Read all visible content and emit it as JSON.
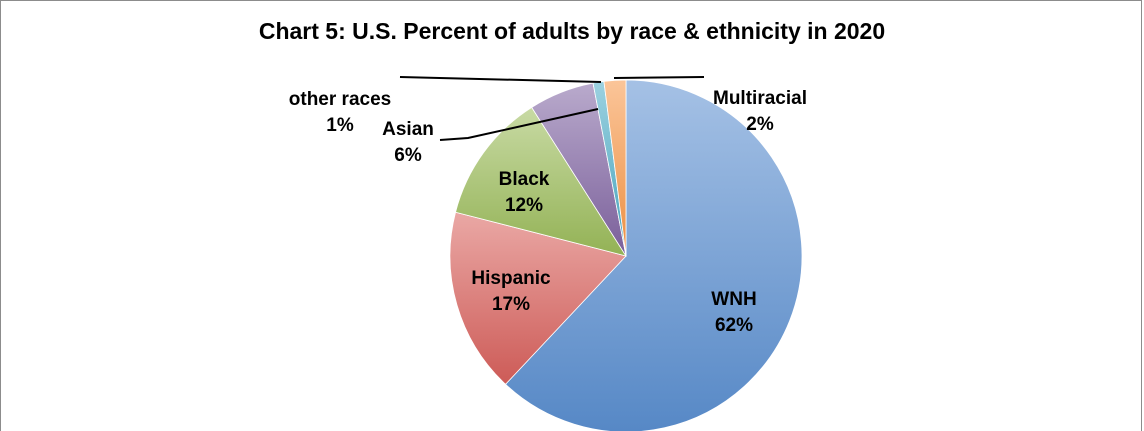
{
  "chart_data": {
    "type": "pie",
    "title": "Chart 5: U.S. Percent of adults by race & ethnicity in 2020",
    "start_angle_deg": 0,
    "direction": "clockwise",
    "slices": [
      {
        "label": "WNH",
        "value": 62,
        "value_label": "62%",
        "color": "#5b8fd0"
      },
      {
        "label": "Hispanic",
        "value": 17,
        "value_label": "17%",
        "color": "#d8605c"
      },
      {
        "label": "Black",
        "value": 12,
        "value_label": "12%",
        "color": "#9bbb59"
      },
      {
        "label": "Asian",
        "value": 6,
        "value_label": "6%",
        "color": "#8064a2"
      },
      {
        "label": "other races",
        "value": 1,
        "value_label": "1%",
        "color": "#4bacc6"
      },
      {
        "label": "Multiracial",
        "value": 2,
        "value_label": "2%",
        "color": "#f79646"
      }
    ]
  }
}
